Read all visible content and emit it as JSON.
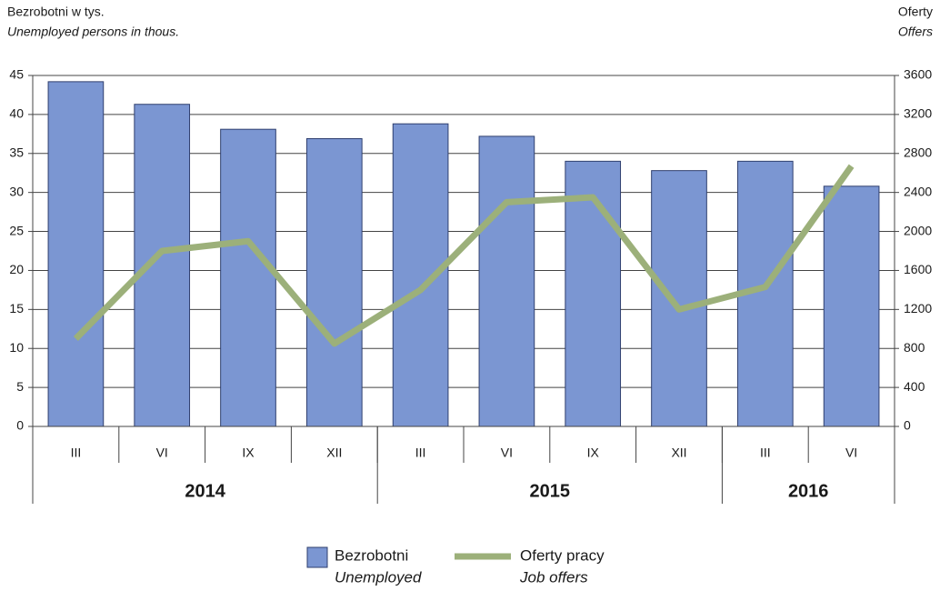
{
  "chart_data": {
    "type": "bar",
    "y_label": "Bezrobotni w tys.",
    "y_label_en": "Unemployed persons in thous.",
    "y2_label": "Oferty",
    "y2_label_en": "Offers",
    "categories": [
      "III",
      "VI",
      "IX",
      "XII",
      "III",
      "VI",
      "IX",
      "XII",
      "III",
      "VI"
    ],
    "groups": [
      {
        "label": "2014",
        "count": 4
      },
      {
        "label": "2015",
        "count": 4
      },
      {
        "label": "2016",
        "count": 2
      }
    ],
    "series": [
      {
        "name": "Bezrobotni",
        "name_en": "Unemployed",
        "type": "bar",
        "color": "#7b96d2",
        "values": [
          44.2,
          41.3,
          38.1,
          36.9,
          38.8,
          37.2,
          34.0,
          32.8,
          34.0,
          30.8
        ]
      },
      {
        "name": "Oferty pracy",
        "name_en": "Job offers",
        "type": "line",
        "axis": "y2",
        "color": "#9cb07a",
        "values": [
          900,
          1800,
          1900,
          850,
          1400,
          2300,
          2350,
          1200,
          1430,
          2670
        ]
      }
    ],
    "ylim": [
      0,
      45
    ],
    "yticks": [
      0,
      5,
      10,
      15,
      20,
      25,
      30,
      35,
      40,
      45
    ],
    "y2lim": [
      0,
      3600
    ],
    "y2ticks": [
      0,
      400,
      800,
      1200,
      1600,
      2000,
      2400,
      2800,
      3200,
      3600
    ],
    "grid": true
  }
}
